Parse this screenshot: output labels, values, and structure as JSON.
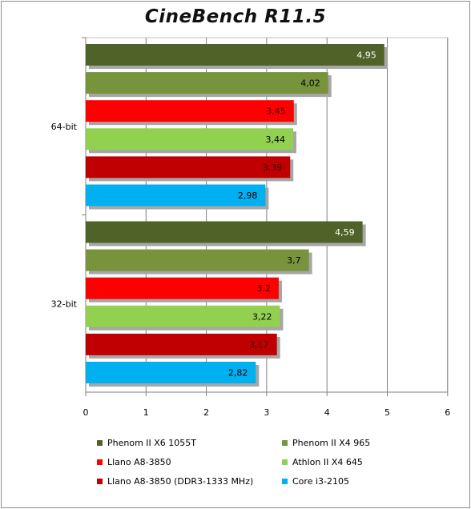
{
  "chart_data": {
    "type": "bar",
    "orientation": "horizontal",
    "title": "CineBench R11.5",
    "categories": [
      "64-bit",
      "32-bit"
    ],
    "series": [
      {
        "name": "Phenom II X6 1055T",
        "color": "#4f6228",
        "labels": [
          "4,95",
          "4,59"
        ],
        "values": [
          4.95,
          4.59
        ]
      },
      {
        "name": "Phenom II X4 965",
        "color": "#77933c",
        "labels": [
          "4,02",
          "3,7"
        ],
        "values": [
          4.02,
          3.7
        ]
      },
      {
        "name": "Llano A8-3850",
        "color": "#ff0000",
        "labels": [
          "3,45",
          "3,2"
        ],
        "values": [
          3.45,
          3.2
        ]
      },
      {
        "name": "Athlon II X4 645",
        "color": "#92d050",
        "labels": [
          "3,44",
          "3,22"
        ],
        "values": [
          3.44,
          3.22
        ]
      },
      {
        "name": "Llano A8-3850 (DDR3-1333 MHz)",
        "color": "#c00000",
        "labels": [
          "3,39",
          "3,17"
        ],
        "values": [
          3.39,
          3.17
        ]
      },
      {
        "name": "Core i3-2105",
        "color": "#00b0f0",
        "labels": [
          "2,98",
          "2,82"
        ],
        "values": [
          2.98,
          2.82
        ]
      }
    ],
    "xlim": [
      0,
      6
    ],
    "xticks": [
      "0",
      "1",
      "2",
      "3",
      "4",
      "5",
      "6"
    ],
    "grid": true,
    "legend_position": "bottom"
  }
}
